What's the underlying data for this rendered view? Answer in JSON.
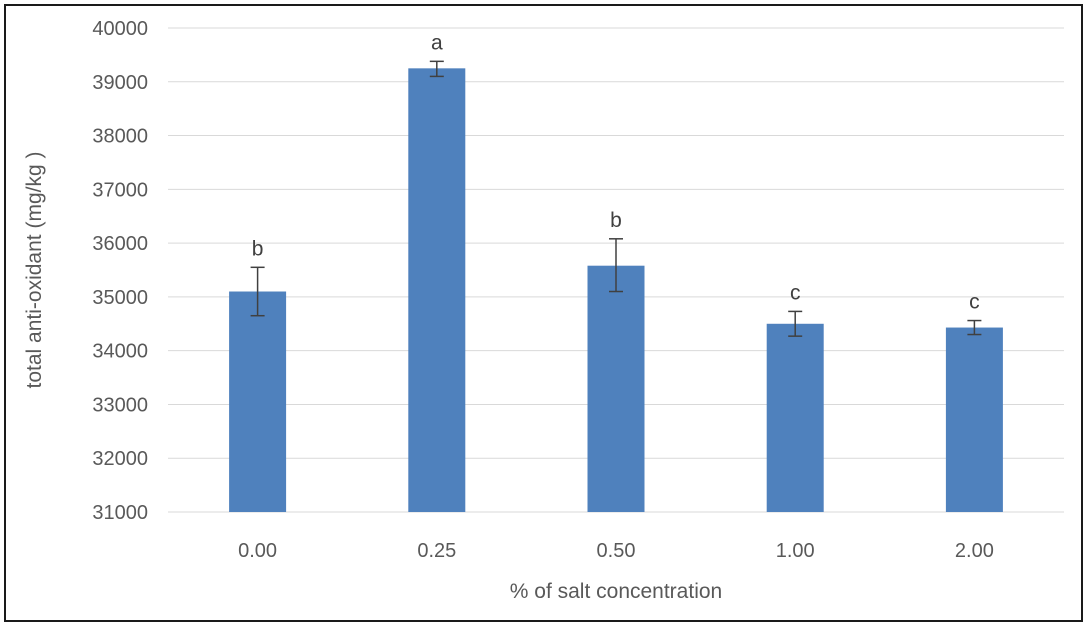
{
  "chart_data": {
    "type": "bar",
    "title": "",
    "xlabel": "% of salt concentration",
    "ylabel": "total anti-oxidant (mg/kg )",
    "ylim": [
      31000,
      40000
    ],
    "yticks": [
      31000,
      32000,
      33000,
      34000,
      35000,
      36000,
      37000,
      38000,
      39000,
      40000
    ],
    "grid": true,
    "legend": "none",
    "bar_color": "#4f81bd",
    "categories": [
      "0.00",
      "0.25",
      "0.50",
      "1.00",
      "2.00"
    ],
    "values": [
      35100,
      39250,
      35580,
      34500,
      34430
    ],
    "error_low": [
      34650,
      39100,
      35100,
      34270,
      34300
    ],
    "error_high": [
      35550,
      39380,
      36080,
      34730,
      34560
    ],
    "significance_labels": [
      "b",
      "a",
      "b",
      "c",
      "c"
    ]
  }
}
